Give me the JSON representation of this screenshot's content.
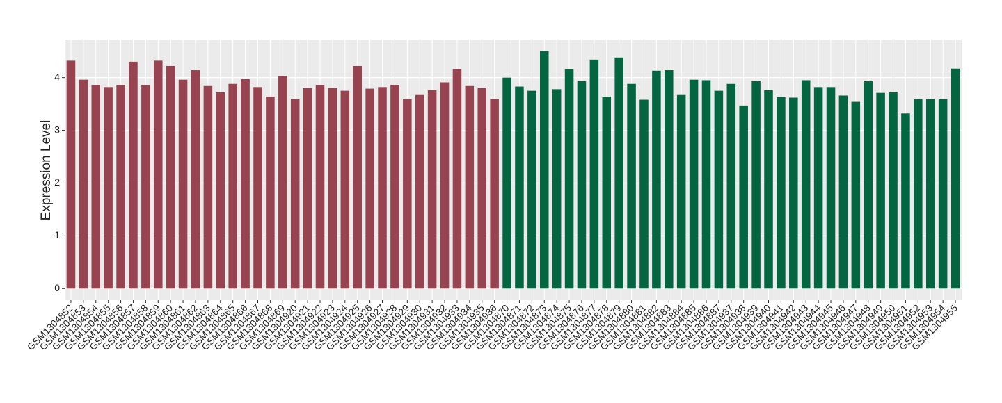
{
  "chart_data": {
    "type": "bar",
    "y_label": "Expression Level",
    "categories": [
      "GSM1304852",
      "GSM1304853",
      "GSM1304854",
      "GSM1304855",
      "GSM1304856",
      "GSM1304857",
      "GSM1304858",
      "GSM1304859",
      "GSM1304860",
      "GSM1304861",
      "GSM1304862",
      "GSM1304863",
      "GSM1304864",
      "GSM1304865",
      "GSM1304866",
      "GSM1304867",
      "GSM1304868",
      "GSM1304869",
      "GSM1304920",
      "GSM1304921",
      "GSM1304922",
      "GSM1304923",
      "GSM1304924",
      "GSM1304925",
      "GSM1304926",
      "GSM1304927",
      "GSM1304928",
      "GSM1304929",
      "GSM1304930",
      "GSM1304931",
      "GSM1304932",
      "GSM1304933",
      "GSM1304934",
      "GSM1304935",
      "GSM1304936",
      "GSM1304870",
      "GSM1304871",
      "GSM1304872",
      "GSM1304873",
      "GSM1304874",
      "GSM1304875",
      "GSM1304876",
      "GSM1304877",
      "GSM1304878",
      "GSM1304879",
      "GSM1304880",
      "GSM1304881",
      "GSM1304882",
      "GSM1304883",
      "GSM1304884",
      "GSM1304885",
      "GSM1304886",
      "GSM1304887",
      "GSM1304937",
      "GSM1304938",
      "GSM1304939",
      "GSM1304940",
      "GSM1304941",
      "GSM1304942",
      "GSM1304943",
      "GSM1304944",
      "GSM1304945",
      "GSM1304946",
      "GSM1304947",
      "GSM1304948",
      "GSM1304949",
      "GSM1304950",
      "GSM1304951",
      "GSM1304952",
      "GSM1304953",
      "GSM1304954",
      "GSM1304955"
    ],
    "values": [
      4.32,
      3.96,
      3.86,
      3.82,
      3.86,
      4.3,
      3.86,
      4.32,
      4.22,
      3.96,
      4.14,
      3.84,
      3.72,
      3.88,
      3.97,
      3.82,
      3.64,
      4.03,
      3.59,
      3.8,
      3.86,
      3.8,
      3.75,
      4.22,
      3.79,
      3.82,
      3.86,
      3.59,
      3.67,
      3.76,
      3.91,
      4.16,
      3.84,
      3.8,
      3.59,
      4.0,
      3.83,
      3.75,
      4.5,
      3.78,
      4.16,
      3.93,
      4.34,
      3.64,
      4.38,
      3.88,
      3.58,
      4.13,
      4.14,
      3.67,
      3.96,
      3.95,
      3.75,
      3.88,
      3.47,
      3.93,
      3.76,
      3.63,
      3.62,
      3.95,
      3.82,
      3.82,
      3.66,
      3.54,
      3.93,
      3.71,
      3.72,
      3.32,
      3.59,
      3.59,
      3.59,
      4.17
    ],
    "colors": [
      "#974350",
      "#974350",
      "#974350",
      "#974350",
      "#974350",
      "#974350",
      "#974350",
      "#974350",
      "#974350",
      "#974350",
      "#974350",
      "#974350",
      "#974350",
      "#974350",
      "#974350",
      "#974350",
      "#974350",
      "#974350",
      "#974350",
      "#974350",
      "#974350",
      "#974350",
      "#974350",
      "#974350",
      "#974350",
      "#974350",
      "#974350",
      "#974350",
      "#974350",
      "#974350",
      "#974350",
      "#974350",
      "#974350",
      "#974350",
      "#974350",
      "#036641",
      "#036641",
      "#036641",
      "#036641",
      "#036641",
      "#036641",
      "#036641",
      "#036641",
      "#036641",
      "#036641",
      "#036641",
      "#036641",
      "#036641",
      "#036641",
      "#036641",
      "#036641",
      "#036641",
      "#036641",
      "#036641",
      "#036641",
      "#036641",
      "#036641",
      "#036641",
      "#036641",
      "#036641",
      "#036641",
      "#036641",
      "#036641",
      "#036641",
      "#036641",
      "#036641",
      "#036641",
      "#036641",
      "#036641",
      "#036641",
      "#036641",
      "#036641"
    ],
    "ylim": [
      -0.22,
      4.72
    ],
    "yticks": [
      0,
      1,
      2,
      3,
      4
    ],
    "grid": true
  }
}
